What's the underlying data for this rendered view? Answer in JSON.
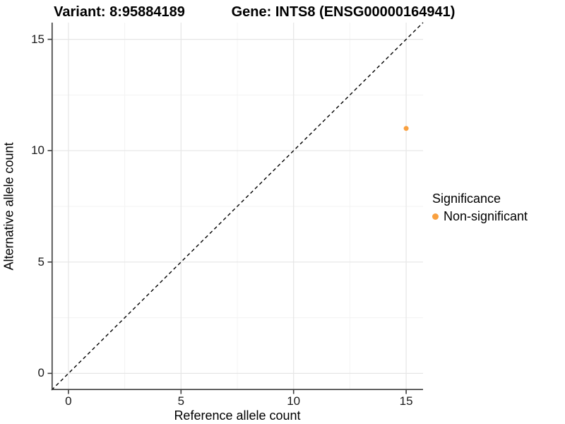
{
  "titles": {
    "variant": "Variant: 8:95884189",
    "gene": "Gene: INTS8 (ENSG00000164941)"
  },
  "chart_data": {
    "type": "scatter",
    "title": "Variant: 8:95884189 | Gene: INTS8 (ENSG00000164941)",
    "xlabel": "Reference allele count",
    "ylabel": "Alternative allele count",
    "xlim": [
      -0.75,
      15.75
    ],
    "ylim": [
      -0.75,
      15.75
    ],
    "xticks": [
      0,
      5,
      10,
      15
    ],
    "yticks": [
      0,
      5,
      10,
      15
    ],
    "minor_xticks": [
      2.5,
      7.5,
      12.5
    ],
    "minor_yticks": [
      2.5,
      7.5,
      12.5
    ],
    "grid": true,
    "points": [
      {
        "x": 15,
        "y": 11,
        "series": "Non-significant"
      }
    ],
    "identity_line": {
      "type": "dashed",
      "equation": "y = x"
    },
    "legend": {
      "position": "right",
      "title": "Significance",
      "entries": [
        {
          "label": "Non-significant",
          "color": "#F9A03F"
        }
      ]
    }
  },
  "colors": {
    "point": "#F9A03F",
    "grid_major": "#E6E6E6",
    "grid_minor": "#F3F3F3",
    "axis_line": "#3C3C3C",
    "identity_line": "#000000",
    "background": "#FFFFFF"
  }
}
